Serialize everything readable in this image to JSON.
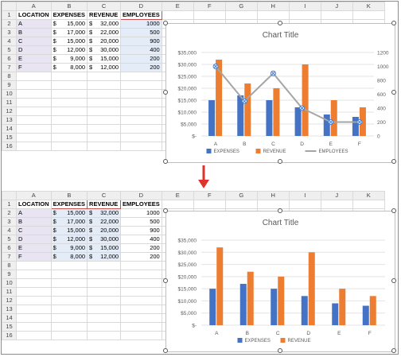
{
  "columns": [
    "A",
    "B",
    "C",
    "D",
    "E",
    "F",
    "G",
    "H",
    "I",
    "J",
    "K"
  ],
  "headers": {
    "location": "LOCATION",
    "expenses": "EXPENSES",
    "revenue": "REVENUE",
    "employees": "EMPLOYEES"
  },
  "rows": [
    {
      "loc": "A",
      "exp": "15,000",
      "rev": "32,000",
      "emp": "1000"
    },
    {
      "loc": "B",
      "exp": "17,000",
      "rev": "22,000",
      "emp": "500"
    },
    {
      "loc": "C",
      "exp": "15,000",
      "rev": "20,000",
      "emp": "900"
    },
    {
      "loc": "D",
      "exp": "12,000",
      "rev": "30,000",
      "emp": "400"
    },
    {
      "loc": "E",
      "exp": "9,000",
      "rev": "15,000",
      "emp": "200"
    },
    {
      "loc": "F",
      "exp": "8,000",
      "rev": "12,000",
      "emp": "200"
    }
  ],
  "currency_symbol": "$",
  "colors": {
    "expenses": "#4472c4",
    "revenue": "#ed7d31",
    "employees": "#a5a5a5",
    "arrow": "#e0312c"
  },
  "chart_data": [
    {
      "type": "bar",
      "title": "Chart Title",
      "categories": [
        "A",
        "B",
        "C",
        "D",
        "E",
        "F"
      ],
      "series": [
        {
          "name": "EXPENSES",
          "values": [
            15000,
            17000,
            15000,
            12000,
            9000,
            8000
          ]
        },
        {
          "name": "REVENUE",
          "values": [
            32000,
            22000,
            20000,
            30000,
            15000,
            12000
          ]
        },
        {
          "name": "EMPLOYEES",
          "type": "line",
          "axis": "secondary",
          "values": [
            1000,
            500,
            900,
            400,
            200,
            200
          ]
        }
      ],
      "ylim": [
        0,
        35000
      ],
      "yticks": [
        "$-",
        "$5,000",
        "$10,000",
        "$15,000",
        "$20,000",
        "$25,000",
        "$30,000",
        "$35,000"
      ],
      "y2lim": [
        0,
        1200
      ],
      "y2ticks": [
        "0",
        "200",
        "400",
        "600",
        "800",
        "1000",
        "1200"
      ],
      "legend": "bottom",
      "grid": true
    },
    {
      "type": "bar",
      "title": "Chart Title",
      "categories": [
        "A",
        "B",
        "C",
        "D",
        "E",
        "F"
      ],
      "series": [
        {
          "name": "EXPENSES",
          "values": [
            15000,
            17000,
            15000,
            12000,
            9000,
            8000
          ]
        },
        {
          "name": "REVENUE",
          "values": [
            32000,
            22000,
            20000,
            30000,
            15000,
            12000
          ]
        }
      ],
      "ylim": [
        0,
        35000
      ],
      "yticks": [
        "$-",
        "$5,000",
        "$10,000",
        "$15,000",
        "$20,000",
        "$25,000",
        "$30,000",
        "$35,000"
      ],
      "legend": "bottom",
      "grid": true
    }
  ]
}
